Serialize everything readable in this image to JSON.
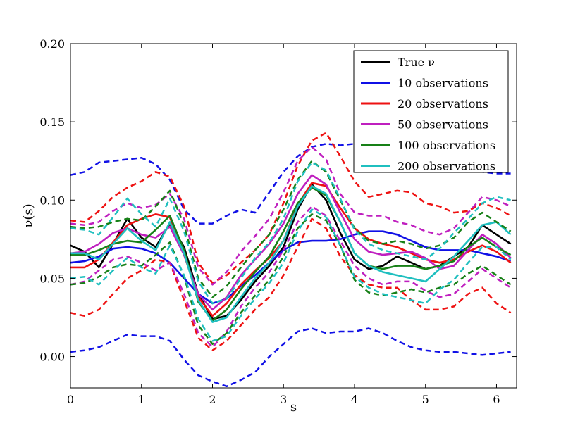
{
  "chart_data": {
    "type": "line",
    "title": "",
    "xlabel": "s",
    "ylabel": "ν(s)",
    "xlim": [
      0,
      6.2832
    ],
    "ylim": [
      -0.02,
      0.2
    ],
    "xticks": [
      0,
      1,
      2,
      3,
      4,
      5,
      6
    ],
    "xtick_labels": [
      "0",
      "1",
      "2",
      "3",
      "4",
      "5",
      "6"
    ],
    "yticks": [
      0.0,
      0.05,
      0.1,
      0.15,
      0.2
    ],
    "ytick_labels": [
      "0.00",
      "0.05",
      "0.10",
      "0.15",
      "0.20"
    ],
    "grid": false,
    "legend_position": "top-right",
    "x": [
      0,
      0.2,
      0.4,
      0.6,
      0.8,
      1.0,
      1.2,
      1.4,
      1.6,
      1.8,
      2.0,
      2.2,
      2.4,
      2.6,
      2.8,
      3.0,
      3.2,
      3.4,
      3.6,
      3.8,
      4.0,
      4.2,
      4.4,
      4.6,
      4.8,
      5.0,
      5.2,
      5.4,
      5.6,
      5.8,
      6.0,
      6.2
    ],
    "series": [
      {
        "name": "True ν",
        "color": "#000000",
        "style": "solid",
        "values": [
          0.071,
          0.067,
          0.057,
          0.072,
          0.088,
          0.076,
          0.07,
          0.085,
          0.07,
          0.04,
          0.024,
          0.026,
          0.036,
          0.048,
          0.058,
          0.07,
          0.094,
          0.11,
          0.1,
          0.079,
          0.062,
          0.056,
          0.058,
          0.064,
          0.06,
          0.056,
          0.058,
          0.064,
          0.07,
          0.084,
          0.078,
          0.072
        ]
      },
      {
        "name": "10 observations",
        "color": "#1010e6",
        "style": "solid",
        "values": [
          0.06,
          0.061,
          0.064,
          0.069,
          0.07,
          0.069,
          0.066,
          0.06,
          0.05,
          0.04,
          0.034,
          0.037,
          0.045,
          0.052,
          0.06,
          0.068,
          0.073,
          0.074,
          0.074,
          0.075,
          0.078,
          0.08,
          0.08,
          0.078,
          0.074,
          0.07,
          0.068,
          0.068,
          0.068,
          0.066,
          0.064,
          0.061
        ]
      },
      {
        "name": "20 observations",
        "color": "#ee1111",
        "style": "solid",
        "values": [
          0.057,
          0.057,
          0.062,
          0.073,
          0.084,
          0.088,
          0.091,
          0.089,
          0.065,
          0.038,
          0.026,
          0.034,
          0.046,
          0.055,
          0.063,
          0.074,
          0.097,
          0.111,
          0.109,
          0.095,
          0.082,
          0.075,
          0.072,
          0.07,
          0.066,
          0.062,
          0.06,
          0.062,
          0.067,
          0.071,
          0.067,
          0.06
        ]
      },
      {
        "name": "50 observations",
        "color": "#bf1fbf",
        "style": "solid",
        "values": [
          0.066,
          0.067,
          0.072,
          0.079,
          0.082,
          0.078,
          0.076,
          0.083,
          0.065,
          0.04,
          0.03,
          0.038,
          0.052,
          0.062,
          0.072,
          0.085,
          0.104,
          0.116,
          0.11,
          0.092,
          0.075,
          0.067,
          0.065,
          0.066,
          0.067,
          0.063,
          0.056,
          0.058,
          0.068,
          0.078,
          0.072,
          0.063
        ]
      },
      {
        "name": "100 observations",
        "color": "#178017",
        "style": "solid",
        "values": [
          0.065,
          0.065,
          0.068,
          0.072,
          0.074,
          0.073,
          0.081,
          0.09,
          0.068,
          0.035,
          0.023,
          0.03,
          0.043,
          0.054,
          0.064,
          0.08,
          0.098,
          0.108,
          0.103,
          0.086,
          0.066,
          0.058,
          0.056,
          0.058,
          0.058,
          0.056,
          0.058,
          0.061,
          0.07,
          0.076,
          0.07,
          0.065
        ]
      },
      {
        "name": "200 observations",
        "color": "#1fbfbf",
        "style": "solid",
        "values": [
          0.066,
          0.066,
          0.062,
          0.072,
          0.082,
          0.074,
          0.068,
          0.086,
          0.066,
          0.036,
          0.022,
          0.025,
          0.038,
          0.05,
          0.06,
          0.074,
          0.096,
          0.109,
          0.104,
          0.086,
          0.066,
          0.058,
          0.054,
          0.052,
          0.05,
          0.048,
          0.056,
          0.064,
          0.074,
          0.084,
          0.086,
          0.078
        ]
      },
      {
        "name": "10 obs upper band",
        "color": "#1010e6",
        "style": "dashed",
        "values": [
          0.116,
          0.118,
          0.124,
          0.125,
          0.126,
          0.127,
          0.123,
          0.113,
          0.094,
          0.085,
          0.085,
          0.09,
          0.094,
          0.092,
          0.105,
          0.118,
          0.128,
          0.134,
          0.136,
          0.135,
          0.136,
          0.136,
          0.135,
          0.134,
          0.131,
          0.126,
          0.122,
          0.12,
          0.122,
          0.118,
          0.117,
          0.117
        ]
      },
      {
        "name": "10 obs lower band",
        "color": "#1010e6",
        "style": "dashed",
        "values": [
          0.003,
          0.004,
          0.006,
          0.01,
          0.014,
          0.013,
          0.013,
          0.01,
          -0.002,
          -0.012,
          -0.016,
          -0.019,
          -0.015,
          -0.01,
          0.0,
          0.008,
          0.016,
          0.018,
          0.015,
          0.016,
          0.016,
          0.018,
          0.015,
          0.01,
          0.006,
          0.004,
          0.003,
          0.003,
          0.002,
          0.001,
          0.002,
          0.003
        ]
      },
      {
        "name": "20 obs upper band",
        "color": "#ee1111",
        "style": "dashed",
        "values": [
          0.087,
          0.086,
          0.093,
          0.102,
          0.108,
          0.112,
          0.118,
          0.115,
          0.096,
          0.06,
          0.047,
          0.052,
          0.06,
          0.068,
          0.078,
          0.098,
          0.122,
          0.138,
          0.143,
          0.128,
          0.112,
          0.102,
          0.104,
          0.106,
          0.105,
          0.098,
          0.096,
          0.092,
          0.093,
          0.098,
          0.095,
          0.09
        ]
      },
      {
        "name": "20 obs lower band",
        "color": "#ee1111",
        "style": "dashed",
        "values": [
          0.028,
          0.026,
          0.03,
          0.04,
          0.05,
          0.055,
          0.062,
          0.06,
          0.036,
          0.012,
          0.004,
          0.01,
          0.02,
          0.03,
          0.038,
          0.052,
          0.07,
          0.088,
          0.082,
          0.064,
          0.052,
          0.046,
          0.044,
          0.044,
          0.036,
          0.03,
          0.03,
          0.032,
          0.04,
          0.044,
          0.034,
          0.028
        ]
      },
      {
        "name": "50 obs upper band",
        "color": "#bf1fbf",
        "style": "dashed",
        "values": [
          0.085,
          0.084,
          0.086,
          0.093,
          0.098,
          0.095,
          0.097,
          0.104,
          0.088,
          0.057,
          0.046,
          0.054,
          0.067,
          0.077,
          0.088,
          0.105,
          0.125,
          0.134,
          0.126,
          0.104,
          0.092,
          0.09,
          0.09,
          0.086,
          0.084,
          0.08,
          0.078,
          0.082,
          0.092,
          0.102,
          0.1,
          0.096
        ]
      },
      {
        "name": "50 obs lower band",
        "color": "#bf1fbf",
        "style": "dashed",
        "values": [
          0.046,
          0.048,
          0.055,
          0.062,
          0.064,
          0.06,
          0.055,
          0.06,
          0.04,
          0.015,
          0.006,
          0.016,
          0.032,
          0.044,
          0.054,
          0.068,
          0.086,
          0.096,
          0.09,
          0.074,
          0.058,
          0.05,
          0.046,
          0.048,
          0.048,
          0.042,
          0.038,
          0.04,
          0.048,
          0.056,
          0.05,
          0.044
        ]
      },
      {
        "name": "100 obs upper band",
        "color": "#178017",
        "style": "dashed",
        "values": [
          0.083,
          0.082,
          0.083,
          0.086,
          0.088,
          0.087,
          0.096,
          0.106,
          0.084,
          0.05,
          0.038,
          0.045,
          0.057,
          0.068,
          0.078,
          0.094,
          0.113,
          0.125,
          0.118,
          0.1,
          0.082,
          0.074,
          0.072,
          0.074,
          0.072,
          0.069,
          0.071,
          0.076,
          0.086,
          0.092,
          0.086,
          0.08
        ]
      },
      {
        "name": "100 obs lower band",
        "color": "#178017",
        "style": "dashed",
        "values": [
          0.046,
          0.047,
          0.051,
          0.057,
          0.059,
          0.058,
          0.065,
          0.073,
          0.051,
          0.02,
          0.008,
          0.015,
          0.028,
          0.039,
          0.049,
          0.064,
          0.082,
          0.091,
          0.087,
          0.071,
          0.049,
          0.041,
          0.039,
          0.041,
          0.043,
          0.041,
          0.044,
          0.046,
          0.053,
          0.058,
          0.052,
          0.046
        ]
      },
      {
        "name": "200 obs upper band",
        "color": "#1fbfbf",
        "style": "dashed",
        "values": [
          0.082,
          0.081,
          0.078,
          0.089,
          0.101,
          0.091,
          0.083,
          0.101,
          0.08,
          0.048,
          0.034,
          0.037,
          0.05,
          0.063,
          0.073,
          0.088,
          0.112,
          0.124,
          0.119,
          0.101,
          0.081,
          0.072,
          0.068,
          0.066,
          0.064,
          0.062,
          0.069,
          0.079,
          0.088,
          0.098,
          0.102,
          0.1
        ]
      },
      {
        "name": "200 obs lower band",
        "color": "#1fbfbf",
        "style": "dashed",
        "values": [
          0.05,
          0.051,
          0.046,
          0.055,
          0.063,
          0.057,
          0.053,
          0.071,
          0.052,
          0.024,
          0.01,
          0.013,
          0.026,
          0.037,
          0.047,
          0.06,
          0.08,
          0.094,
          0.089,
          0.071,
          0.051,
          0.044,
          0.04,
          0.038,
          0.036,
          0.034,
          0.043,
          0.049,
          0.06,
          0.07,
          0.07,
          0.062
        ]
      }
    ],
    "legend": [
      {
        "label": "True ν",
        "color": "#000000"
      },
      {
        "label": "10 observations",
        "color": "#1010e6"
      },
      {
        "label": "20 observations",
        "color": "#ee1111"
      },
      {
        "label": "50 observations",
        "color": "#bf1fbf"
      },
      {
        "label": "100 observations",
        "color": "#178017"
      },
      {
        "label": "200 observations",
        "color": "#1fbfbf"
      }
    ]
  }
}
